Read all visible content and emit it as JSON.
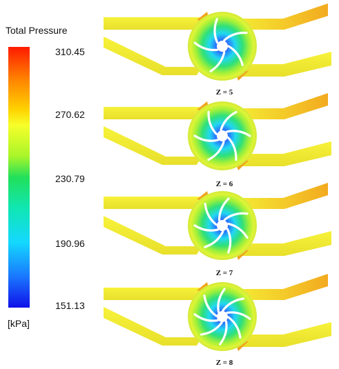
{
  "legend": {
    "title": "Total Pressure",
    "ticks": [
      "310.45",
      "270.62",
      "230.79",
      "190.96",
      "151.13"
    ],
    "unit": "[kPa]",
    "colors": [
      "#ff1a00",
      "#ffd200",
      "#22e05a",
      "#14d8ff",
      "#1010e8"
    ]
  },
  "panels": [
    {
      "label": "Z = 5",
      "blades": 5
    },
    {
      "label": "Z = 6",
      "blades": 6
    },
    {
      "label": "Z = 7",
      "blades": 7
    },
    {
      "label": "Z = 8",
      "blades": 8
    }
  ],
  "field_colors": {
    "background": "#ffffff",
    "duct": "#f2ee2c",
    "duct_outlet": "#f6b21e",
    "outer_ring": "#b9e63a",
    "inner_core": "#32c4ff",
    "hub": "#ffffff"
  }
}
